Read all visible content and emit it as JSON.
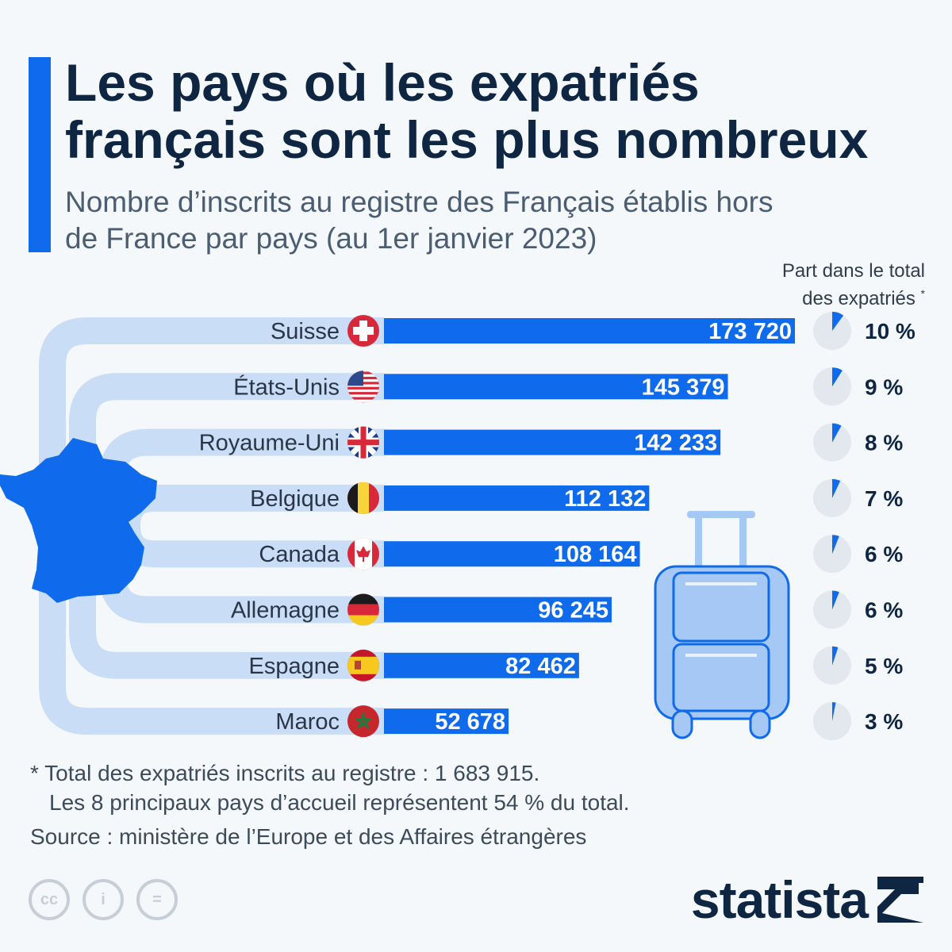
{
  "header": {
    "title_line1": "Les pays où les expatriés",
    "title_line2": "français sont les plus nombreux",
    "subtitle_line1": "Nombre d’inscrits au registre des Français établis hors",
    "subtitle_line2": "de France par pays (au 1er janvier 2023)",
    "share_line1": "Part dans le total",
    "share_line2": "des expatriés",
    "share_star": "*"
  },
  "chart_data": {
    "type": "bar",
    "orientation": "horizontal",
    "title": "Les pays où les expatriés français sont les plus nombreux",
    "categories": [
      "Suisse",
      "États-Unis",
      "Royaume-Uni",
      "Belgique",
      "Canada",
      "Allemagne",
      "Espagne",
      "Maroc"
    ],
    "values": [
      173720,
      145379,
      142233,
      112132,
      108164,
      96245,
      82462,
      52678
    ],
    "value_labels": [
      "173 720",
      "145 379",
      "142 233",
      "112 132",
      "108 164",
      "96 245",
      "82 462",
      "52 678"
    ],
    "shares": [
      10,
      9,
      8,
      7,
      6,
      6,
      5,
      3
    ],
    "share_labels": [
      "10 %",
      "9 %",
      "8 %",
      "7 %",
      "6 %",
      "6 %",
      "5 %",
      "3 %"
    ],
    "xlim": [
      0,
      173720
    ],
    "grid": false,
    "legend": "none"
  },
  "footnote": {
    "line1": "* Total des expatriés inscrits au registre : 1 683 915.",
    "line2": "Les 8 principaux pays d’accueil représentent 54 % du total.",
    "source": "Source : ministère de l’Europe et des Affaires étrangères"
  },
  "branding": {
    "logo": "statista",
    "cc_labels": [
      "cc",
      "i",
      "="
    ]
  },
  "colors": {
    "bar": "#0f6bec",
    "pie_bg": "#e3e8ee",
    "route": "#c9ddf6",
    "title": "#0f2643",
    "france": "#0f6bec",
    "suitcase": "#a6c8f5"
  }
}
